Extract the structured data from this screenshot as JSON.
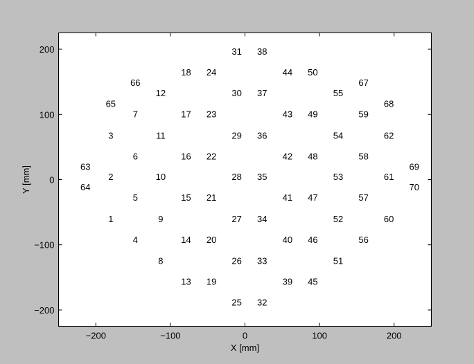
{
  "chart_data": {
    "type": "scatter",
    "title": "",
    "xlabel": "X [mm]",
    "ylabel": "Y [mm]",
    "xlim": [
      -250,
      250
    ],
    "ylim": [
      -225,
      225
    ],
    "xticks": [
      -200,
      -100,
      0,
      100,
      200
    ],
    "yticks": [
      -200,
      -100,
      0,
      100,
      200
    ],
    "xtick_labels": [
      "−200",
      "−100",
      "0",
      "100",
      "200"
    ],
    "ytick_labels": [
      "−200",
      "−100",
      "0",
      "100",
      "200"
    ],
    "grid": false,
    "marker": "text-label",
    "points": [
      {
        "label": "1",
        "x": -180,
        "y": -60
      },
      {
        "label": "2",
        "x": -180,
        "y": 5
      },
      {
        "label": "3",
        "x": -180,
        "y": 68
      },
      {
        "label": "4",
        "x": -147,
        "y": -92
      },
      {
        "label": "5",
        "x": -147,
        "y": -27
      },
      {
        "label": "6",
        "x": -147,
        "y": 36
      },
      {
        "label": "7",
        "x": -147,
        "y": 101
      },
      {
        "label": "8",
        "x": -113,
        "y": -124
      },
      {
        "label": "9",
        "x": -113,
        "y": -60
      },
      {
        "label": "10",
        "x": -113,
        "y": 5
      },
      {
        "label": "11",
        "x": -113,
        "y": 68
      },
      {
        "label": "12",
        "x": -113,
        "y": 133
      },
      {
        "label": "13",
        "x": -79,
        "y": -156
      },
      {
        "label": "14",
        "x": -79,
        "y": -92
      },
      {
        "label": "15",
        "x": -79,
        "y": -27
      },
      {
        "label": "16",
        "x": -79,
        "y": 36
      },
      {
        "label": "17",
        "x": -79,
        "y": 101
      },
      {
        "label": "18",
        "x": -79,
        "y": 165
      },
      {
        "label": "19",
        "x": -45,
        "y": -156
      },
      {
        "label": "20",
        "x": -45,
        "y": -92
      },
      {
        "label": "21",
        "x": -45,
        "y": -27
      },
      {
        "label": "22",
        "x": -45,
        "y": 36
      },
      {
        "label": "23",
        "x": -45,
        "y": 101
      },
      {
        "label": "24",
        "x": -45,
        "y": 165
      },
      {
        "label": "25",
        "x": -11,
        "y": -188
      },
      {
        "label": "26",
        "x": -11,
        "y": -124
      },
      {
        "label": "27",
        "x": -11,
        "y": -60
      },
      {
        "label": "28",
        "x": -11,
        "y": 5
      },
      {
        "label": "29",
        "x": -11,
        "y": 68
      },
      {
        "label": "30",
        "x": -11,
        "y": 133
      },
      {
        "label": "31",
        "x": -11,
        "y": 197
      },
      {
        "label": "32",
        "x": 23,
        "y": -188
      },
      {
        "label": "33",
        "x": 23,
        "y": -124
      },
      {
        "label": "34",
        "x": 23,
        "y": -60
      },
      {
        "label": "35",
        "x": 23,
        "y": 5
      },
      {
        "label": "36",
        "x": 23,
        "y": 68
      },
      {
        "label": "37",
        "x": 23,
        "y": 133
      },
      {
        "label": "38",
        "x": 23,
        "y": 197
      },
      {
        "label": "39",
        "x": 57,
        "y": -156
      },
      {
        "label": "40",
        "x": 57,
        "y": -92
      },
      {
        "label": "41",
        "x": 57,
        "y": -27
      },
      {
        "label": "42",
        "x": 57,
        "y": 36
      },
      {
        "label": "43",
        "x": 57,
        "y": 101
      },
      {
        "label": "44",
        "x": 57,
        "y": 165
      },
      {
        "label": "45",
        "x": 91,
        "y": -156
      },
      {
        "label": "46",
        "x": 91,
        "y": -92
      },
      {
        "label": "47",
        "x": 91,
        "y": -27
      },
      {
        "label": "48",
        "x": 91,
        "y": 36
      },
      {
        "label": "49",
        "x": 91,
        "y": 101
      },
      {
        "label": "50",
        "x": 91,
        "y": 165
      },
      {
        "label": "51",
        "x": 125,
        "y": -124
      },
      {
        "label": "52",
        "x": 125,
        "y": -60
      },
      {
        "label": "53",
        "x": 125,
        "y": 5
      },
      {
        "label": "54",
        "x": 125,
        "y": 68
      },
      {
        "label": "55",
        "x": 125,
        "y": 133
      },
      {
        "label": "56",
        "x": 159,
        "y": -92
      },
      {
        "label": "57",
        "x": 159,
        "y": -27
      },
      {
        "label": "58",
        "x": 159,
        "y": 36
      },
      {
        "label": "59",
        "x": 159,
        "y": 101
      },
      {
        "label": "60",
        "x": 193,
        "y": -60
      },
      {
        "label": "61",
        "x": 193,
        "y": 5
      },
      {
        "label": "62",
        "x": 193,
        "y": 68
      },
      {
        "label": "63",
        "x": -214,
        "y": 20
      },
      {
        "label": "64",
        "x": -214,
        "y": -11
      },
      {
        "label": "65",
        "x": -180,
        "y": 117
      },
      {
        "label": "66",
        "x": -147,
        "y": 149
      },
      {
        "label": "67",
        "x": 159,
        "y": 149
      },
      {
        "label": "68",
        "x": 193,
        "y": 117
      },
      {
        "label": "69",
        "x": 227,
        "y": 20
      },
      {
        "label": "70",
        "x": 227,
        "y": -11
      }
    ]
  },
  "colors": {
    "figure_background": "#bfbfbf",
    "axes_background": "#ffffff",
    "text": "#000000",
    "axes_edge": "#000000"
  }
}
